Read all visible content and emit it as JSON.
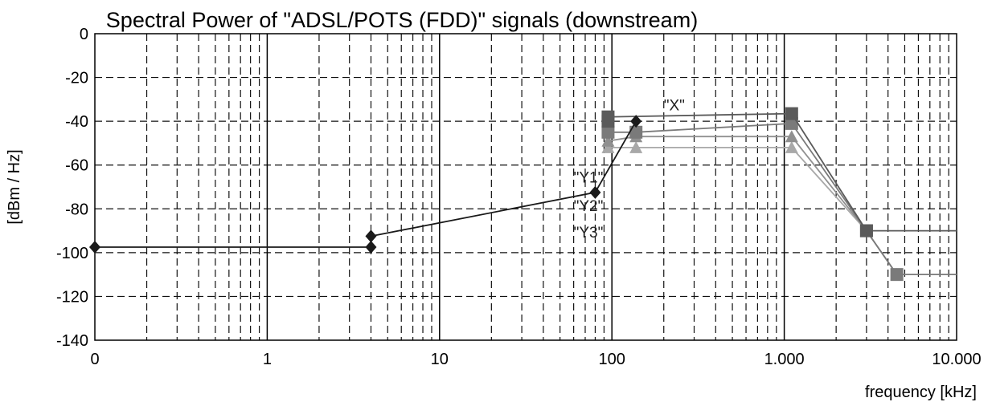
{
  "chart_data": {
    "type": "line",
    "title": "Spectral Power of \"ADSL/POTS (FDD)\" signals (downstream)",
    "xlabel": "frequency [kHz]",
    "ylabel": "[dBm / Hz]",
    "x_scale": "log",
    "x_axis_note": "first tick labelled 0 sits at the 0.1 kHz decade position",
    "xlim": [
      0.1,
      10000
    ],
    "ylim": [
      -140,
      0
    ],
    "x_ticks": [
      {
        "value": 0.1,
        "label": "0"
      },
      {
        "value": 1,
        "label": "1"
      },
      {
        "value": 10,
        "label": "10"
      },
      {
        "value": 100,
        "label": "100"
      },
      {
        "value": 1000,
        "label": "1.000"
      },
      {
        "value": 10000,
        "label": "10.000"
      }
    ],
    "y_ticks": [
      0,
      -20,
      -40,
      -60,
      -80,
      -100,
      -120,
      -140
    ],
    "grid": true,
    "grid_style": "dashed",
    "series": [
      {
        "color": "#1a1a1a",
        "marker": "diamond",
        "points": [
          [
            0.1,
            -97.5
          ],
          [
            4,
            -97.5
          ],
          [
            4,
            -92.5
          ],
          [
            80,
            -72.5
          ],
          [
            138,
            -40
          ]
        ]
      },
      {
        "name": "\"X\"",
        "color": "#5a5a5a",
        "marker": "square",
        "points": [
          [
            95,
            -40
          ],
          [
            95,
            -38
          ],
          [
            1104,
            -36.5
          ],
          [
            3000,
            -90
          ],
          [
            10000,
            -90
          ]
        ]
      },
      {
        "name": "\"Y1\"",
        "color": "#7a7a7a",
        "marker": "square",
        "points": [
          [
            95,
            -45
          ],
          [
            138,
            -45
          ],
          [
            1104,
            -41
          ],
          [
            3000,
            -90
          ],
          [
            4500,
            -110
          ],
          [
            10000,
            -110
          ]
        ]
      },
      {
        "name": "\"Y2\"",
        "color": "#909090",
        "marker": "triangle",
        "points": [
          [
            95,
            -49
          ],
          [
            138,
            -47
          ],
          [
            1104,
            -47
          ],
          [
            3000,
            -90
          ],
          [
            4500,
            -110
          ]
        ]
      },
      {
        "name": "\"Y3\"",
        "color": "#a8a8a8",
        "marker": "triangle",
        "points": [
          [
            95,
            -52
          ],
          [
            138,
            -52
          ],
          [
            1104,
            -52
          ],
          [
            3000,
            -90
          ],
          [
            4500,
            -110
          ]
        ]
      }
    ],
    "annotations": [
      {
        "text": "\"X\"",
        "x": 200,
        "y": -35
      },
      {
        "text": "\"Y1\"",
        "x": 60,
        "y": -68
      },
      {
        "text": "\"Y2\"",
        "x": 60,
        "y": -81
      },
      {
        "text": "\"Y3\"",
        "x": 60,
        "y": -93
      }
    ]
  }
}
